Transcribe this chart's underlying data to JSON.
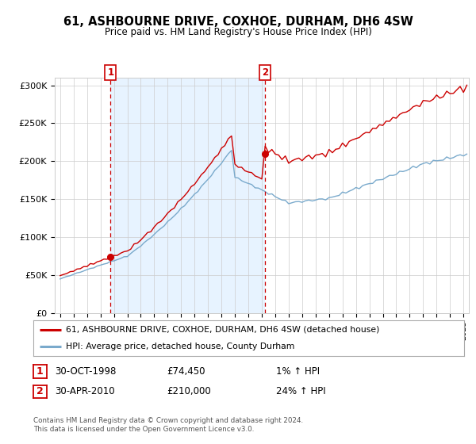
{
  "title": "61, ASHBOURNE DRIVE, COXHOE, DURHAM, DH6 4SW",
  "subtitle": "Price paid vs. HM Land Registry's House Price Index (HPI)",
  "ylabel_ticks": [
    "£0",
    "£50K",
    "£100K",
    "£150K",
    "£200K",
    "£250K",
    "£300K"
  ],
  "ytick_values": [
    0,
    50000,
    100000,
    150000,
    200000,
    250000,
    300000
  ],
  "ylim": [
    0,
    310000
  ],
  "legend_line1": "61, ASHBOURNE DRIVE, COXHOE, DURHAM, DH6 4SW (detached house)",
  "legend_line2": "HPI: Average price, detached house, County Durham",
  "annotation1_label": "1",
  "annotation1_date": "30-OCT-1998",
  "annotation1_price": "£74,450",
  "annotation1_hpi": "1% ↑ HPI",
  "annotation2_label": "2",
  "annotation2_date": "30-APR-2010",
  "annotation2_price": "£210,000",
  "annotation2_hpi": "24% ↑ HPI",
  "footer": "Contains HM Land Registry data © Crown copyright and database right 2024.\nThis data is licensed under the Open Government Licence v3.0.",
  "red_color": "#cc0000",
  "blue_color": "#7aaacc",
  "shade_color": "#ddeeff",
  "background_color": "#ffffff",
  "grid_color": "#cccccc",
  "sale1_year": 1998.75,
  "sale1_price": 74450,
  "sale2_year": 2010.25,
  "sale2_price": 210000
}
